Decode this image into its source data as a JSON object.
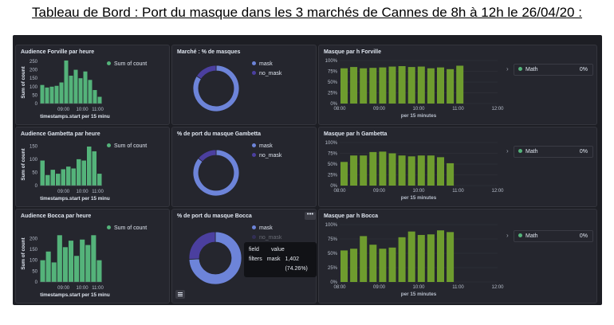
{
  "page_title": "Tableau de Bord : Port du masque dans les 3 marchés de Cannes de 8h à 12h le 26/04/20 :",
  "colors": {
    "green_hist": "#54b37a",
    "green_bar": "#6e9c2e",
    "mask": "#6d84d9",
    "no_mask": "#4b3f9f",
    "math": "#54b37a"
  },
  "panels": {
    "aud_forville": "Audience Forville par heure",
    "aud_gambetta": "Audience Gambetta par heure",
    "aud_bocca": "Audience Bocca par heure",
    "pie_forville": "Marché : % de masques",
    "pie_gambetta": "% de port du masque Gambetta",
    "pie_bocca": "% de port du masque Bocca",
    "bar_forville": "Masque par h Forville",
    "bar_gambetta": "Masque par h Gambetta",
    "bar_bocca": "Masque par h Bocca"
  },
  "hist_legend": "Sum of count",
  "hist_ylabel": "Sum of count",
  "hist_xlabel": "timestamps.start per 15 minu",
  "bar_xlabel": "per 15 minutes",
  "pie_legend": [
    "mask",
    "no_mask"
  ],
  "math_legend": {
    "label": "Math",
    "value": "0%"
  },
  "tooltip": {
    "header_field": "field",
    "header_value": "value",
    "row_field": "filters",
    "row_key": "mask",
    "row_value": "1,402 (74.26%)"
  },
  "more_button": "•••",
  "chart_data": [
    {
      "id": "hist_forville",
      "type": "bar",
      "xticks": [
        "09:00",
        "10:00",
        "11:00"
      ],
      "yticks": [
        0,
        50,
        100,
        150,
        200,
        250
      ],
      "ylim": [
        0,
        250
      ],
      "values": [
        110,
        95,
        100,
        105,
        125,
        255,
        165,
        200,
        150,
        190,
        140,
        80,
        40
      ]
    },
    {
      "id": "hist_gambetta",
      "type": "bar",
      "xticks": [
        "09:00",
        "10:00",
        "11:00"
      ],
      "yticks": [
        0,
        50,
        100,
        150
      ],
      "ylim": [
        0,
        160
      ],
      "values": [
        95,
        40,
        60,
        45,
        62,
        72,
        65,
        100,
        95,
        148,
        130,
        45
      ]
    },
    {
      "id": "hist_bocca",
      "type": "bar",
      "xticks": [
        "09:00",
        "10:00",
        "11:00"
      ],
      "yticks": [
        0,
        50,
        100,
        150,
        200
      ],
      "ylim": [
        0,
        260
      ],
      "values": [
        100,
        140,
        90,
        215,
        160,
        190,
        120,
        195,
        170,
        215,
        100
      ]
    },
    {
      "id": "pie_forville",
      "type": "pie",
      "labels": [
        "mask",
        "no_mask"
      ],
      "values": [
        84,
        16
      ]
    },
    {
      "id": "pie_gambetta",
      "type": "pie",
      "labels": [
        "mask",
        "no_mask"
      ],
      "values": [
        86,
        14
      ]
    },
    {
      "id": "pie_bocca",
      "type": "pie",
      "labels": [
        "mask",
        "no_mask"
      ],
      "values": [
        74.26,
        25.74
      ]
    },
    {
      "id": "bar_forville",
      "type": "bar",
      "xticks": [
        "08:00",
        "09:00",
        "10:00",
        "11:00",
        "12:00"
      ],
      "yticks": [
        "0%",
        "25%",
        "50%",
        "75%",
        "100%"
      ],
      "ylim": [
        0,
        100
      ],
      "values": [
        82,
        85,
        82,
        83,
        84,
        86,
        87,
        85,
        86,
        82,
        84,
        80,
        88
      ]
    },
    {
      "id": "bar_gambetta",
      "type": "bar",
      "xticks": [
        "08:00",
        "09:00",
        "10:00",
        "11:00",
        "12:00"
      ],
      "yticks": [
        "0%",
        "25%",
        "50%",
        "75%",
        "100%"
      ],
      "ylim": [
        0,
        100
      ],
      "values": [
        55,
        70,
        70,
        78,
        79,
        75,
        70,
        68,
        70,
        70,
        66,
        52
      ]
    },
    {
      "id": "bar_bocca",
      "type": "bar",
      "xticks": [
        "08:00",
        "09:00",
        "10:00",
        "11:00",
        "12:00"
      ],
      "yticks": [
        "0%",
        "25%",
        "50%",
        "75%",
        "100%"
      ],
      "ylim": [
        0,
        100
      ],
      "values": [
        55,
        58,
        80,
        65,
        58,
        60,
        78,
        88,
        82,
        83,
        90,
        87
      ]
    }
  ]
}
